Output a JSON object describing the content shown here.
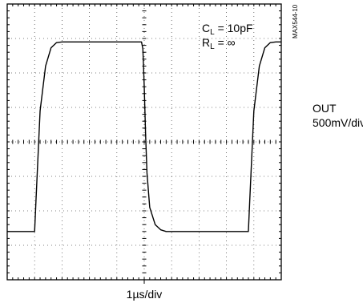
{
  "chart_data": {
    "type": "line",
    "title": "",
    "annotations": {
      "load_c_prefix": "C",
      "load_c_sub": "L",
      "load_c_value": " = 10pF",
      "load_r_prefix": "R",
      "load_r_sub": "L",
      "load_r_value": " = ∞",
      "part_id": "MAX544-10"
    },
    "xlabel": "1µs/div",
    "ylabel_line1": "OUT",
    "ylabel_line2": "500mV/div",
    "x_divisions": 10,
    "y_divisions": 8,
    "grid": "dotted",
    "xlim": [
      0,
      10
    ],
    "ylim": [
      -4,
      4
    ],
    "series": [
      {
        "x": [
          0,
          1.0,
          1.05,
          1.2,
          1.4,
          1.6,
          1.8,
          2.0,
          4.9,
          4.95,
          5.0,
          5.05,
          5.1,
          5.2,
          5.4,
          5.6,
          5.8,
          6.0,
          8.8,
          8.85,
          9.0,
          9.2,
          9.4,
          9.6,
          9.8,
          10.0
        ],
        "y": [
          -2.6,
          -2.6,
          -1.7,
          0.9,
          2.2,
          2.73,
          2.88,
          2.9,
          2.9,
          2.7,
          1.6,
          0.2,
          -0.9,
          -1.9,
          -2.4,
          -2.55,
          -2.6,
          -2.6,
          -2.6,
          -1.7,
          0.9,
          2.2,
          2.73,
          2.88,
          2.9,
          2.9
        ]
      }
    ]
  }
}
